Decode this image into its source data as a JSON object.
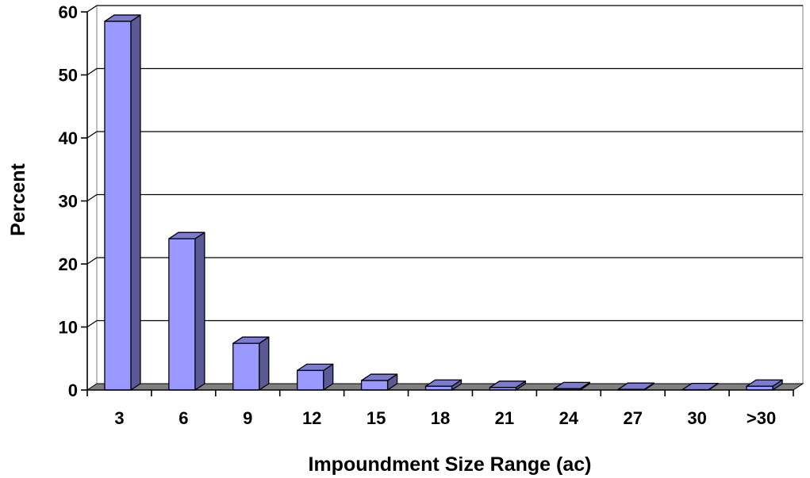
{
  "chart_data": {
    "type": "bar",
    "style": "3d-column",
    "title": "",
    "xlabel": "Impoundment Size Range (ac)",
    "ylabel": "Percent",
    "categories": [
      "3",
      "6",
      "9",
      "12",
      "15",
      "18",
      "21",
      "24",
      "27",
      "30",
      ">30"
    ],
    "values": [
      58.5,
      24,
      7.4,
      3.1,
      1.5,
      0.6,
      0.4,
      0.2,
      0.1,
      0.05,
      0.6
    ],
    "yticks": [
      0,
      10,
      20,
      30,
      40,
      50,
      60
    ],
    "ylim": [
      0,
      60
    ],
    "grid": true,
    "legend": "none",
    "colors": {
      "bar_front": "#9999ff",
      "bar_side": "#5a5a99",
      "bar_top": "#7b7bd0",
      "bar_outline": "#000000",
      "floor": "#808080",
      "gridline": "#000000",
      "wall": "#ffffff"
    }
  }
}
